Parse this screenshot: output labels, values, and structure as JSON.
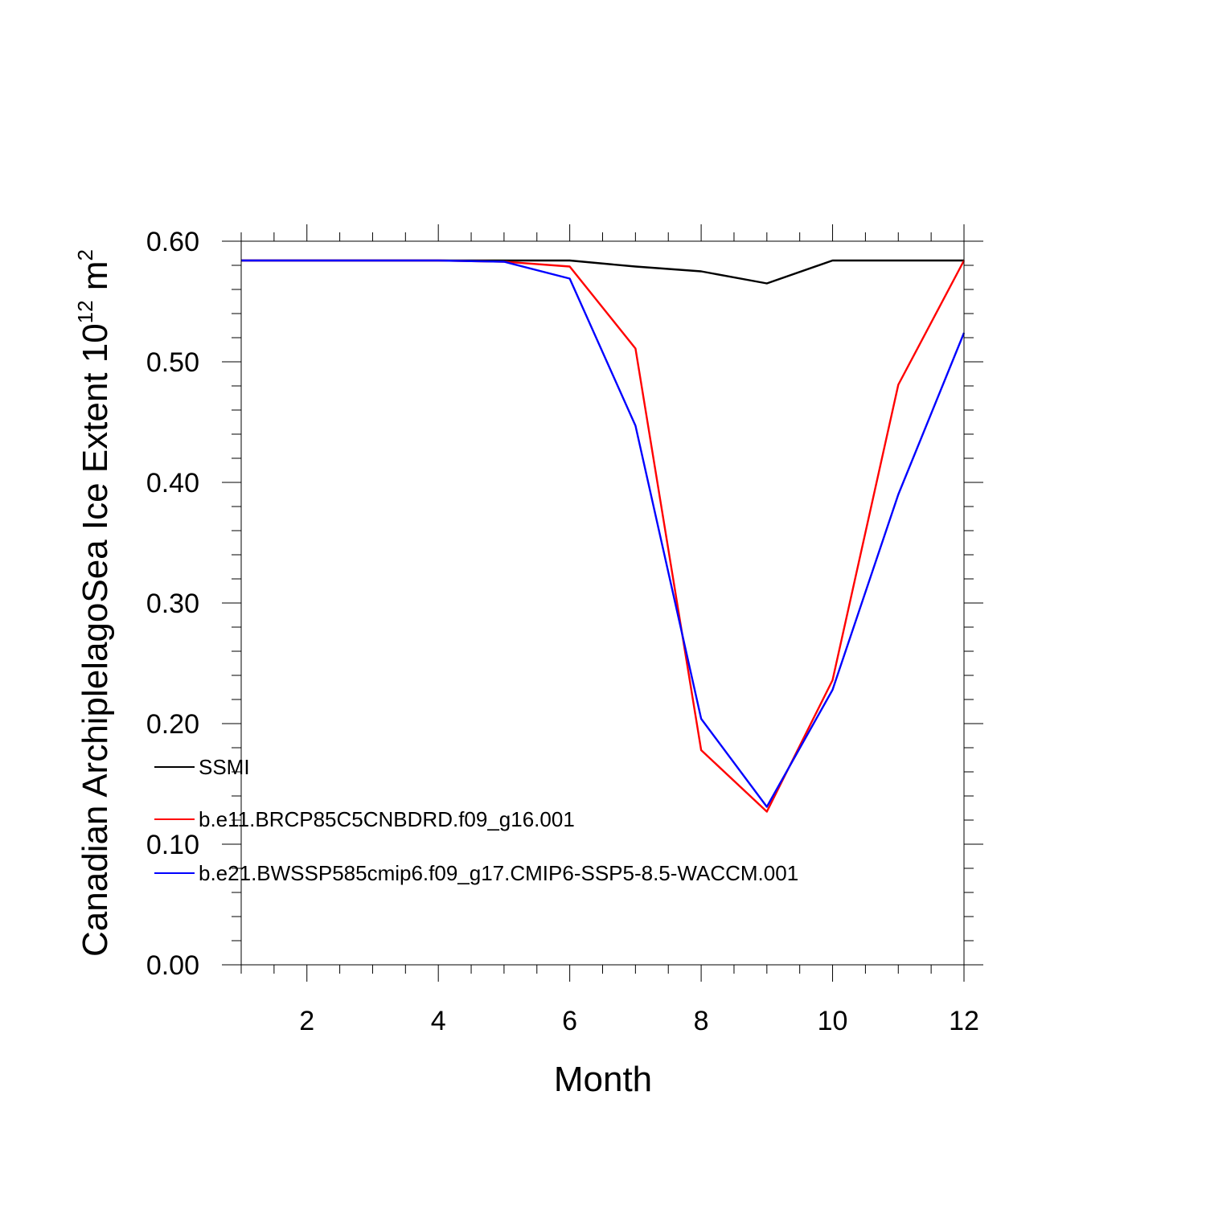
{
  "chart_data": {
    "type": "line",
    "title": "",
    "xlabel": "Month",
    "ylabel_main": "Canadian ArchiplelagoSea Ice Extent 10",
    "ylabel_exp1": "12",
    "ylabel_mid": " m",
    "ylabel_exp2": "2",
    "xlim": [
      1,
      12
    ],
    "ylim": [
      0,
      0.6
    ],
    "xticks": [
      2,
      4,
      6,
      8,
      10,
      12
    ],
    "xtick_labels": [
      "2",
      "4",
      "6",
      "8",
      "10",
      "12"
    ],
    "yticks": [
      0,
      0.1,
      0.2,
      0.3,
      0.4,
      0.5,
      0.6
    ],
    "ytick_labels": [
      "0.00",
      "0.10",
      "0.20",
      "0.30",
      "0.40",
      "0.50",
      "0.60"
    ],
    "grid": false,
    "legend_position": "lower-left",
    "x": [
      1,
      2,
      3,
      4,
      5,
      6,
      7,
      8,
      9,
      10,
      11,
      12
    ],
    "series": [
      {
        "name": "SSMI",
        "color": "#000000",
        "values": [
          0.584,
          0.584,
          0.584,
          0.584,
          0.584,
          0.584,
          0.579,
          0.575,
          0.565,
          0.584,
          0.584,
          0.584
        ]
      },
      {
        "name": "b.e11.BRCP85C5CNBDRD.f09_g16.001",
        "color": "#ff0000",
        "values": [
          0.584,
          0.584,
          0.584,
          0.584,
          0.583,
          0.579,
          0.511,
          0.178,
          0.127,
          0.236,
          0.481,
          0.584
        ]
      },
      {
        "name": "b.e21.BWSSP585cmip6.f09_g17.CMIP6-SSP5-8.5-WACCM.001",
        "color": "#0000ff",
        "values": [
          0.584,
          0.584,
          0.584,
          0.584,
          0.583,
          0.569,
          0.447,
          0.204,
          0.131,
          0.228,
          0.39,
          0.524
        ]
      }
    ]
  }
}
